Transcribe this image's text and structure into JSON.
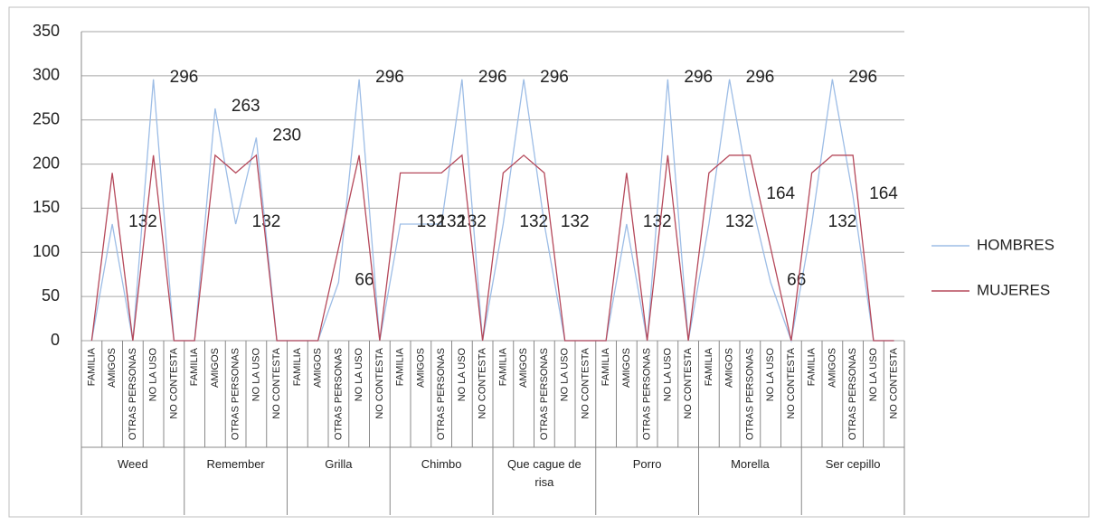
{
  "chart_data": {
    "type": "line",
    "categories": [
      "FAMILIA",
      "AMIGOS",
      "OTRAS PERSONAS",
      "NO LA USO",
      "NO CONTESTA",
      "FAMILIA",
      "AMIGOS",
      "OTRAS PERSONAS",
      "NO LA USO",
      "NO CONTESTA",
      "FAMILIA",
      "AMIGOS",
      "OTRAS PERSONAS",
      "NO LA USO",
      "NO CONTESTA",
      "FAMILIA",
      "AMIGOS",
      "OTRAS PERSONAS",
      "NO LA USO",
      "NO CONTESTA",
      "FAMILIA",
      "AMIGOS",
      "OTRAS PERSONAS",
      "NO LA USO",
      "NO CONTESTA",
      "FAMILIA",
      "AMIGOS",
      "OTRAS PERSONAS",
      "NO LA USO",
      "NO CONTESTA",
      "FAMILIA",
      "AMIGOS",
      "OTRAS PERSONAS",
      "NO LA USO",
      "NO CONTESTA",
      "FAMILIA",
      "AMIGOS",
      "OTRAS PERSONAS",
      "NO LA USO",
      "NO CONTESTA"
    ],
    "groups": [
      "Weed",
      "Remember",
      "Grilla",
      "Chimbo",
      "Que cague de risa",
      "Porro",
      "Morella",
      "Ser cepillo"
    ],
    "series": [
      {
        "name": "HOMBRES",
        "color": "#9dbde6",
        "data_labels": true,
        "values": [
          0,
          132,
          0,
          296,
          0,
          0,
          263,
          132,
          230,
          0,
          0,
          0,
          66,
          296,
          0,
          132,
          132,
          132,
          296,
          0,
          132,
          296,
          132,
          0,
          0,
          0,
          132,
          0,
          296,
          0,
          132,
          296,
          164,
          66,
          0,
          132,
          296,
          164,
          0,
          0
        ]
      },
      {
        "name": "MUJERES",
        "color": "#b5485a",
        "values": [
          0,
          190,
          0,
          210,
          0,
          0,
          210,
          190,
          210,
          0,
          0,
          0,
          105,
          210,
          0,
          190,
          190,
          190,
          210,
          0,
          190,
          210,
          190,
          0,
          0,
          0,
          190,
          0,
          210,
          0,
          190,
          210,
          210,
          105,
          0,
          190,
          210,
          210,
          0,
          0
        ]
      }
    ],
    "ylim": [
      0,
      350
    ],
    "yticks": [
      0,
      50,
      100,
      150,
      200,
      250,
      300,
      350
    ],
    "grid": true,
    "legend": "right"
  }
}
